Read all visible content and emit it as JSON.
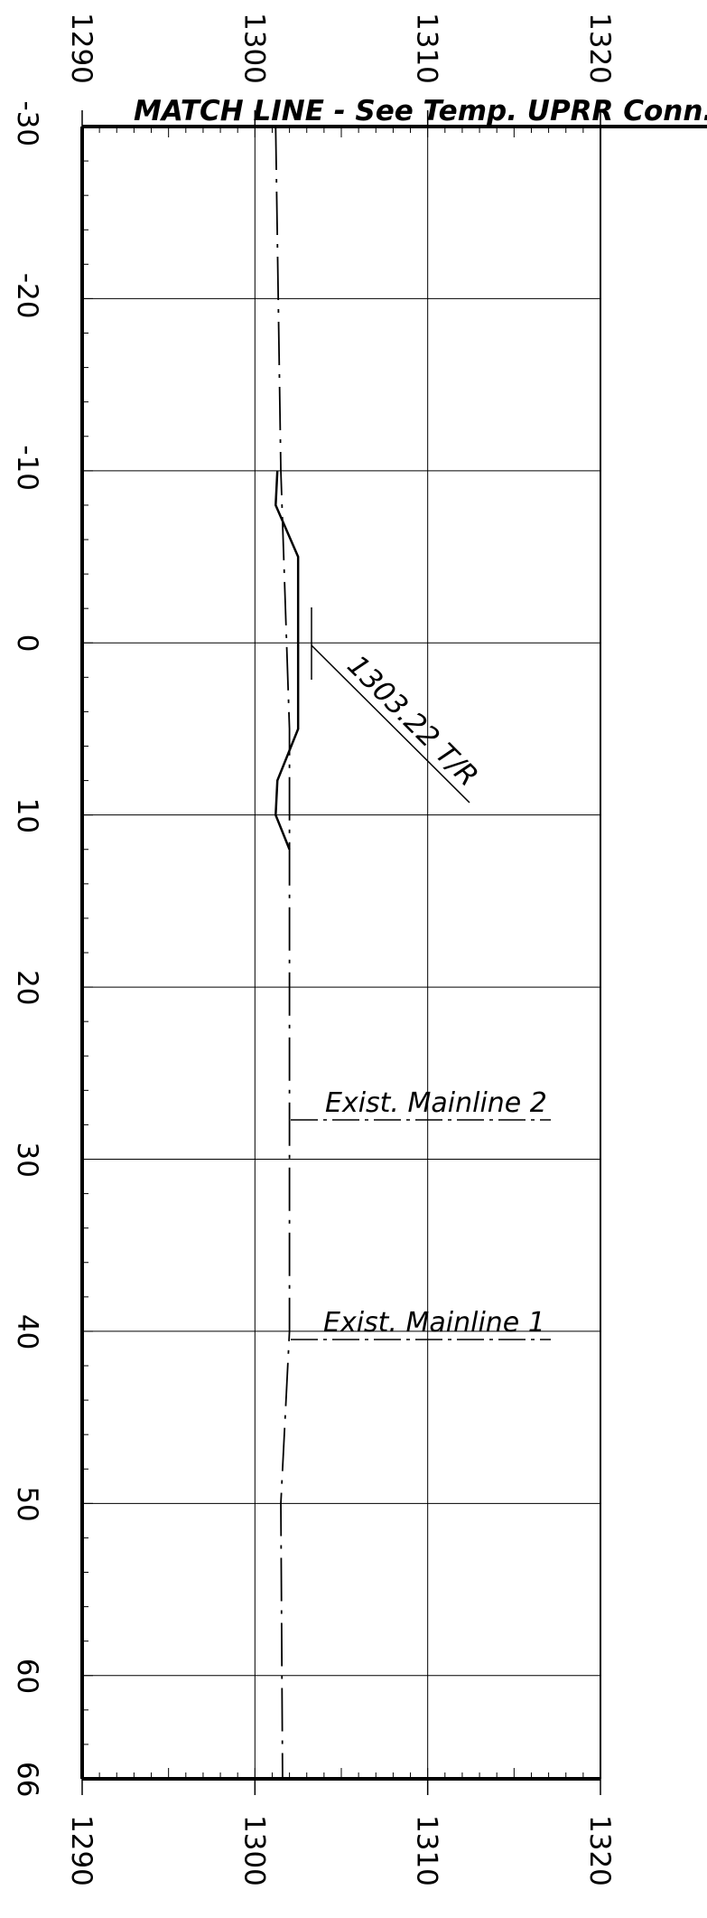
{
  "title": "MATCH LINE - See Temp. UPRR Conn.",
  "elevation_axis": {
    "ticks": [
      "1290",
      "1300",
      "1310",
      "1320"
    ],
    "range": [
      1290,
      1320
    ]
  },
  "station_axis": {
    "ticks": [
      "-30",
      "-20",
      "-10",
      "0",
      "10",
      "20",
      "30",
      "40",
      "50",
      "60",
      "66"
    ],
    "range": [
      -30,
      66
    ]
  },
  "annotations": {
    "tr": "1303.22 T/R",
    "mainline2": "Exist. Mainline 2",
    "mainline1": "Exist. Mainline 1"
  },
  "chart_data": {
    "type": "line",
    "title": "MATCH LINE - See Temp. UPRR Conn.",
    "x_axis": "elevation",
    "y_axis": "station",
    "xlim": [
      1290,
      1320
    ],
    "ylim": [
      -30,
      66
    ],
    "grid": true,
    "series": [
      {
        "style": "dash-dot",
        "points": [
          [
            1301.2,
            -30
          ],
          [
            1301.5,
            -10
          ],
          [
            1302.0,
            5
          ],
          [
            1302.0,
            40
          ],
          [
            1301.5,
            50
          ],
          [
            1301.6,
            66
          ]
        ]
      },
      {
        "style": "solid",
        "points": [
          [
            1301.3,
            -10
          ],
          [
            1301.2,
            -8
          ],
          [
            1302.5,
            -5
          ],
          [
            1302.5,
            5
          ],
          [
            1301.3,
            8
          ],
          [
            1301.2,
            10
          ],
          [
            1302.0,
            12
          ]
        ]
      }
    ]
  }
}
